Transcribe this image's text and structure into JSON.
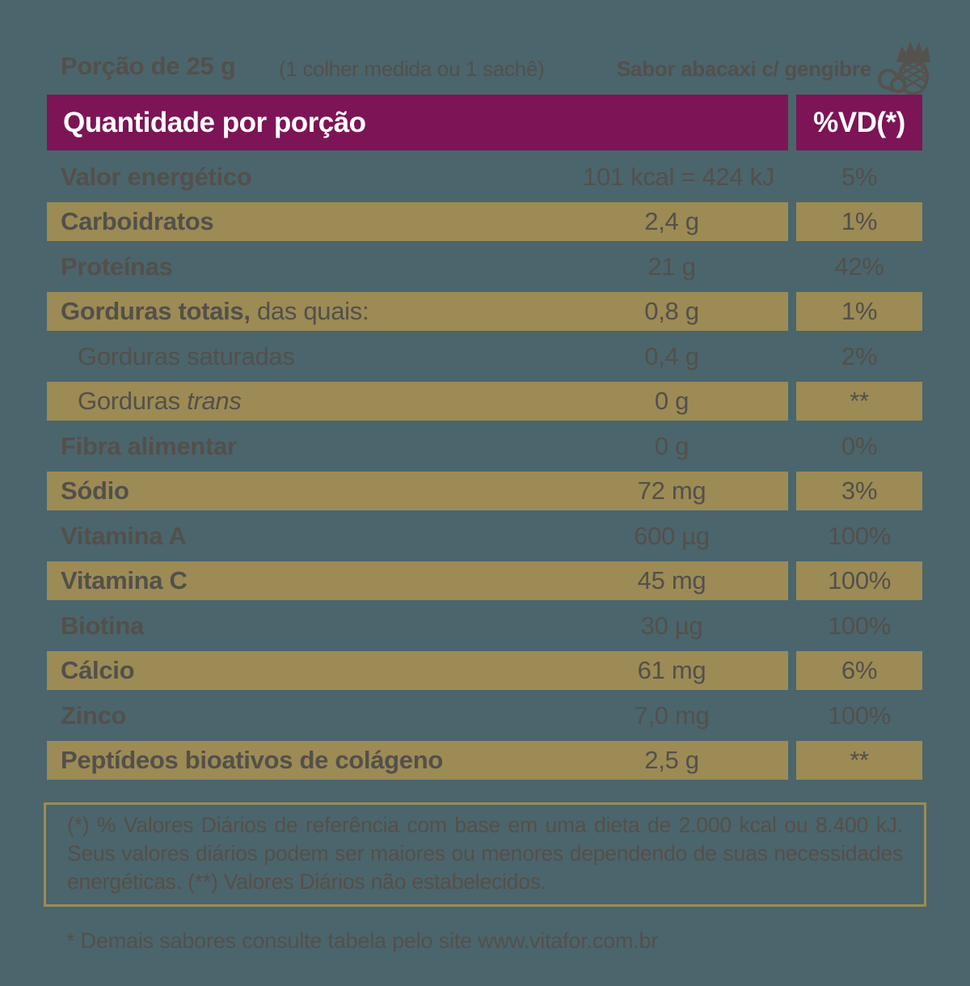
{
  "colors": {
    "background": "#4b656c",
    "highlight_gold": "#9c8b54",
    "header_magenta": "#7d1456",
    "text_dark": "#53504b",
    "header_text": "#ffffff"
  },
  "top": {
    "portion": "Porção de 25 g",
    "measure": "(1 colher medida ou 1 sachê)",
    "flavor": "Sabor abacaxi c/ gengibre",
    "icon": "pineapple-ginger-icon"
  },
  "table": {
    "header": {
      "quantity_label": "Quantidade por porção",
      "dv_label": "%VD(*)"
    },
    "rows": [
      {
        "parts": [
          {
            "text": "Valor energético",
            "style": "bold"
          }
        ],
        "value": "101 kcal = 424 kJ",
        "dv": "5%",
        "highlight": false,
        "indent": false
      },
      {
        "parts": [
          {
            "text": "Carboidratos",
            "style": "bold"
          }
        ],
        "value": "2,4 g",
        "dv": "1%",
        "highlight": true,
        "indent": false
      },
      {
        "parts": [
          {
            "text": "Proteínas",
            "style": "bold"
          }
        ],
        "value": "21 g",
        "dv": "42%",
        "highlight": false,
        "indent": false
      },
      {
        "parts": [
          {
            "text": "Gorduras totais,",
            "style": "bold"
          },
          {
            "text": " das quais:",
            "style": "regular"
          }
        ],
        "value": "0,8 g",
        "dv": "1%",
        "highlight": true,
        "indent": false
      },
      {
        "parts": [
          {
            "text": "Gorduras saturadas",
            "style": "regular"
          }
        ],
        "value": "0,4 g",
        "dv": "2%",
        "highlight": false,
        "indent": true
      },
      {
        "parts": [
          {
            "text": "Gorduras ",
            "style": "regular"
          },
          {
            "text": "trans",
            "style": "italic"
          }
        ],
        "value": "0 g",
        "dv": "**",
        "highlight": true,
        "indent": true
      },
      {
        "parts": [
          {
            "text": "Fibra alimentar",
            "style": "bold"
          }
        ],
        "value": "0 g",
        "dv": "0%",
        "highlight": false,
        "indent": false
      },
      {
        "parts": [
          {
            "text": "Sódio",
            "style": "bold"
          }
        ],
        "value": "72 mg",
        "dv": "3%",
        "highlight": true,
        "indent": false
      },
      {
        "parts": [
          {
            "text": "Vitamina A",
            "style": "bold"
          }
        ],
        "value": "600 µg",
        "dv": "100%",
        "highlight": false,
        "indent": false
      },
      {
        "parts": [
          {
            "text": "Vitamina C",
            "style": "bold"
          }
        ],
        "value": "45 mg",
        "dv": "100%",
        "highlight": true,
        "indent": false
      },
      {
        "parts": [
          {
            "text": "Biotina",
            "style": "bold"
          }
        ],
        "value": "30 µg",
        "dv": "100%",
        "highlight": false,
        "indent": false
      },
      {
        "parts": [
          {
            "text": "Cálcio",
            "style": "bold"
          }
        ],
        "value": "61 mg",
        "dv": "6%",
        "highlight": true,
        "indent": false
      },
      {
        "parts": [
          {
            "text": "Zinco",
            "style": "bold"
          }
        ],
        "value": "7,0 mg",
        "dv": "100%",
        "highlight": false,
        "indent": false
      },
      {
        "parts": [
          {
            "text": "Peptídeos bioativos de colágeno",
            "style": "bold"
          }
        ],
        "value": "2,5 g",
        "dv": "**",
        "highlight": true,
        "indent": false
      }
    ]
  },
  "footnote": "(*) % Valores Diários de referência com base em uma dieta de 2.000 kcal ou 8.400 kJ. Seus valores diários podem ser maiores ou menores dependendo de suas necessidades energéticas. (**) Valores Diários não estabelecidos.",
  "bottom_note": "* Demais sabores consulte tabela pelo site www.vitafor.com.br"
}
